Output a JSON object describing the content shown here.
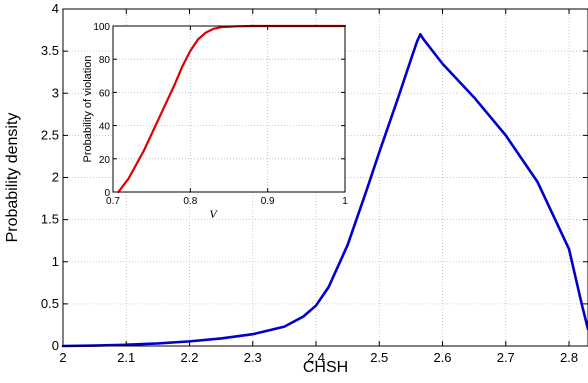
{
  "chart_data": [
    {
      "type": "line",
      "title": "",
      "xlabel": "CHSH",
      "ylabel": "Probability density",
      "xlim": [
        2,
        2.83
      ],
      "ylim": [
        0,
        4
      ],
      "xticks": [
        2,
        2.1,
        2.2,
        2.3,
        2.4,
        2.5,
        2.6,
        2.7,
        2.8
      ],
      "xtick_labels": [
        "2",
        "2.1",
        "2.2",
        "2.3",
        "2.4",
        "2.5",
        "2.6",
        "2.7",
        "2.8"
      ],
      "yticks": [
        0,
        0.5,
        1,
        1.5,
        2,
        2.5,
        3,
        3.5,
        4
      ],
      "ytick_labels": [
        "0",
        "0.5",
        "1",
        "1.5",
        "2",
        "2.5",
        "3",
        "3.5",
        "4"
      ],
      "grid": true,
      "series": [
        {
          "color": "#0000cc",
          "x": [
            2.0,
            2.05,
            2.1,
            2.15,
            2.2,
            2.25,
            2.3,
            2.35,
            2.38,
            2.4,
            2.42,
            2.45,
            2.48,
            2.5,
            2.53,
            2.55,
            2.56,
            2.565,
            2.57,
            2.6,
            2.65,
            2.7,
            2.75,
            2.8,
            2.82,
            2.83
          ],
          "y": [
            0.0,
            0.005,
            0.015,
            0.03,
            0.055,
            0.09,
            0.14,
            0.23,
            0.35,
            0.48,
            0.7,
            1.2,
            1.85,
            2.3,
            2.95,
            3.4,
            3.62,
            3.7,
            3.64,
            3.35,
            2.95,
            2.5,
            1.95,
            1.15,
            0.5,
            0.2
          ]
        }
      ]
    },
    {
      "type": "line",
      "title": "",
      "xlabel": "V",
      "ylabel": "Probability of violation",
      "xlim": [
        0.7,
        1
      ],
      "ylim": [
        0,
        100
      ],
      "xticks": [
        0.7,
        0.8,
        0.9,
        1
      ],
      "xtick_labels": [
        "0.7",
        "0.8",
        "0.9",
        "1"
      ],
      "yticks": [
        0,
        20,
        40,
        60,
        80,
        100
      ],
      "ytick_labels": [
        "0",
        "20",
        "40",
        "60",
        "80",
        "100"
      ],
      "grid": true,
      "series": [
        {
          "color": "#dd0000",
          "x": [
            0.707,
            0.72,
            0.74,
            0.76,
            0.78,
            0.79,
            0.8,
            0.81,
            0.82,
            0.83,
            0.84,
            0.86,
            0.88,
            0.9,
            0.95,
            1.0
          ],
          "y": [
            0,
            8,
            25,
            45,
            65,
            76,
            85,
            92,
            96,
            98.3,
            99.3,
            99.8,
            100,
            100,
            100,
            100
          ]
        }
      ]
    }
  ]
}
